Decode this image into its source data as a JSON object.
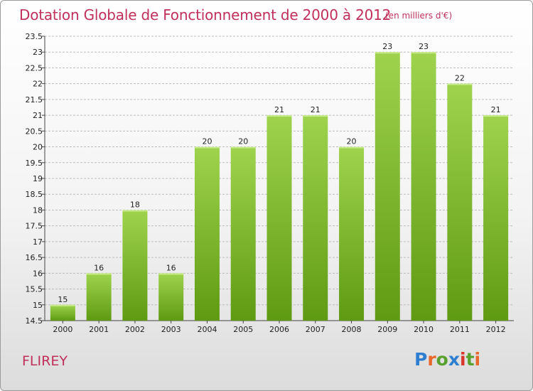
{
  "header": {
    "title": "Dotation Globale de Fonctionnement de 2000 à 2012",
    "unit": "(en milliers d'€)"
  },
  "footer": {
    "commune": "FLIREY",
    "logo_text": "Proxiti"
  },
  "colors": {
    "title": "#c0305a",
    "bar_top": "#9fd34e",
    "bar_bottom": "#5f9a13",
    "grid": "#bdbdbd"
  },
  "chart_data": {
    "type": "bar",
    "title": "Dotation Globale de Fonctionnement de 2000 à 2012",
    "subtitle": "(en milliers d'€)",
    "categories": [
      "2000",
      "2001",
      "2002",
      "2003",
      "2004",
      "2005",
      "2006",
      "2007",
      "2008",
      "2009",
      "2010",
      "2011",
      "2012"
    ],
    "values": [
      15,
      16,
      18,
      16,
      20,
      20,
      21,
      21,
      20,
      23,
      23,
      22,
      21
    ],
    "value_labels": [
      "15",
      "16",
      "18",
      "16",
      "20",
      "20",
      "21",
      "21",
      "20",
      "23",
      "23",
      "22",
      "21"
    ],
    "ylim": [
      14.5,
      23.5
    ],
    "yticks": [
      "14.5",
      "15",
      "15.5",
      "16",
      "16.5",
      "17",
      "17.5",
      "18",
      "18.5",
      "19",
      "19.5",
      "20",
      "20.5",
      "21",
      "21.5",
      "22",
      "22.5",
      "23",
      "23.5"
    ],
    "grid": true,
    "legend": "none"
  }
}
